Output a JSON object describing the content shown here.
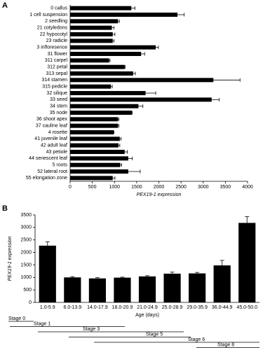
{
  "chart_data": [
    {
      "type": "bar",
      "orientation": "horizontal",
      "panel": "A",
      "color": "#000000",
      "x_label": "PEX19-1 expression",
      "categories": [
        "0 callus",
        "1 cell suspension",
        "2 seedling",
        "21 cotyledons",
        "22 hypocotyl",
        "23 radicle",
        "3 infloresence",
        "31 flower",
        "311 carpel",
        "312 petal",
        "313 sepal",
        "314 stamen",
        "315 pedicle",
        "32 silique",
        "33 seed",
        "34 stem",
        "35 node",
        "36 shoot apex",
        "37 cauline leaf",
        "4 rosette",
        "41 juvenile leaf",
        "42 adult leaf",
        "43 petiole",
        "44 senescent leaf",
        "5 roots",
        "52 lateral root",
        "55 elongation zone"
      ],
      "values": [
        1380,
        2420,
        1080,
        940,
        960,
        960,
        1930,
        1600,
        880,
        1230,
        1420,
        3230,
        920,
        1700,
        3190,
        1540,
        1390,
        1080,
        1080,
        980,
        1120,
        1090,
        1230,
        1310,
        1130,
        1310,
        960
      ],
      "errors": [
        80,
        150,
        30,
        50,
        50,
        30,
        60,
        80,
        20,
        10,
        50,
        600,
        30,
        230,
        170,
        100,
        10,
        20,
        20,
        10,
        30,
        30,
        60,
        90,
        30,
        270,
        50
      ],
      "xlim": [
        0,
        4000
      ],
      "xticks": [
        0,
        500,
        1000,
        1500,
        2000,
        2500,
        3000,
        3500,
        4000
      ]
    },
    {
      "type": "bar",
      "orientation": "vertical",
      "panel": "B",
      "color": "#000000",
      "y_label": "PEX19-1 expression",
      "x_label": "Age (days)",
      "categories": [
        "1.0-5.9",
        "6.0-13.9",
        "14.0-17.9",
        "18.0-20.9",
        "21.0-24.9",
        "25.0-28.9",
        "29.0-35.9",
        "36.0-44.9",
        "45.0-50.0"
      ],
      "values": [
        2270,
        1000,
        960,
        990,
        1040,
        1150,
        1160,
        1480,
        3180
      ],
      "errors": [
        150,
        30,
        30,
        20,
        30,
        60,
        40,
        200,
        250
      ],
      "ylim": [
        0,
        3500
      ],
      "yticks": [
        0,
        500,
        1000,
        1500,
        2000,
        2500,
        3000,
        3500
      ],
      "stages": [
        "Stage 0",
        "Stage 1",
        "Stage 3",
        "Stage 5",
        "Stage 6",
        "Stage 8"
      ]
    }
  ]
}
